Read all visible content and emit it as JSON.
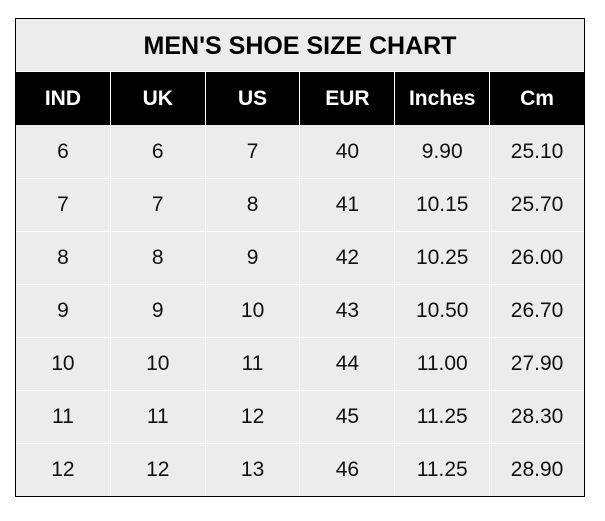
{
  "title": "MEN'S SHOE SIZE CHART",
  "headers": [
    "IND",
    "UK",
    "US",
    "EUR",
    "Inches",
    "Cm"
  ],
  "rows": [
    [
      "6",
      "6",
      "7",
      "40",
      "9.90",
      "25.10"
    ],
    [
      "7",
      "7",
      "8",
      "41",
      "10.15",
      "25.70"
    ],
    [
      "8",
      "8",
      "9",
      "42",
      "10.25",
      "26.00"
    ],
    [
      "9",
      "9",
      "10",
      "43",
      "10.50",
      "26.70"
    ],
    [
      "10",
      "10",
      "11",
      "44",
      "11.00",
      "27.90"
    ],
    [
      "11",
      "11",
      "12",
      "45",
      "11.25",
      "28.30"
    ],
    [
      "12",
      "12",
      "13",
      "46",
      "11.25",
      "28.90"
    ]
  ],
  "colors": {
    "header_bg": "#000000",
    "cell_bg": "#ececec",
    "grid": "#ffffff"
  }
}
